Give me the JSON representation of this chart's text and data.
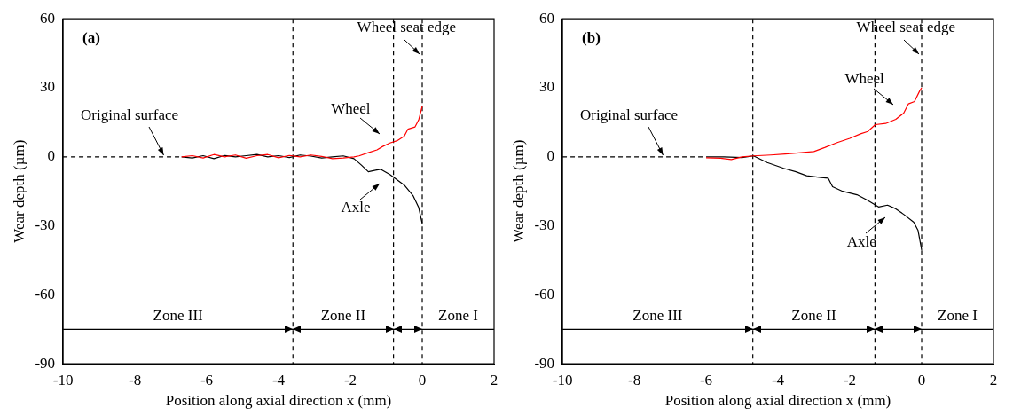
{
  "chart_data": [
    {
      "type": "line",
      "title": "(a)",
      "xlabel": "Position along axial direction x (mm)",
      "ylabel": "Wear depth (µm)",
      "xlim": [
        -10,
        2
      ],
      "ylim": [
        -90,
        60
      ],
      "xticks": [
        -10,
        -8,
        -6,
        -4,
        -2,
        0,
        2
      ],
      "yticks": [
        -90,
        -60,
        -30,
        0,
        30,
        60
      ],
      "grid": false,
      "series": [
        {
          "name": "Wheel",
          "color": "#ff0000",
          "x": [
            -6.7,
            -6.4,
            -6.1,
            -5.8,
            -5.5,
            -5.2,
            -4.9,
            -4.6,
            -4.3,
            -4.0,
            -3.7,
            -3.4,
            -3.1,
            -2.8,
            -2.5,
            -2.2,
            -1.9,
            -1.76,
            -1.5,
            -1.26,
            -1.1,
            -0.9,
            -0.7,
            -0.5,
            -0.4,
            -0.2,
            -0.1,
            0
          ],
          "values": [
            0,
            0.5,
            -0.5,
            1,
            0,
            0.8,
            -0.6,
            0.5,
            1,
            -0.4,
            0.6,
            0,
            0.8,
            0.2,
            -0.8,
            -0.5,
            0,
            0.4,
            1.8,
            3,
            4.5,
            6,
            7,
            9,
            12,
            13,
            16,
            22
          ]
        },
        {
          "name": "Axle",
          "color": "#000000",
          "x": [
            -6.7,
            -6.4,
            -6.1,
            -5.8,
            -5.5,
            -5.2,
            -4.9,
            -4.6,
            -4.3,
            -4.0,
            -3.7,
            -3.4,
            -3.1,
            -2.8,
            -2.5,
            -2.2,
            -1.9,
            -1.7,
            -1.5,
            -1.3,
            -1.16,
            -0.9,
            -0.7,
            -0.5,
            -0.25,
            -0.1,
            0
          ],
          "values": [
            0,
            -0.5,
            0.5,
            -0.8,
            0.6,
            0,
            0.5,
            1,
            0,
            0.5,
            -0.3,
            0.8,
            0.3,
            -0.5,
            0,
            0.4,
            -0.8,
            -3.5,
            -6.5,
            -5.8,
            -5.4,
            -7.7,
            -10,
            -12.3,
            -17,
            -22,
            -29
          ]
        }
      ],
      "ref_lines": [
        {
          "axis": "y",
          "value": 0,
          "label": "Original surface",
          "line_style": "dashed"
        },
        {
          "axis": "x",
          "value": 0,
          "label": "Wheel seat edge",
          "line_style": "dashed"
        },
        {
          "axis": "x",
          "value": -3.6,
          "line_style": "dashed"
        },
        {
          "axis": "x",
          "value": -0.8,
          "line_style": "dashed"
        },
        {
          "axis": "y",
          "value": -75,
          "line_style": "solid"
        }
      ],
      "annotations": [
        "Zone III",
        "Zone II",
        "Zone I"
      ]
    },
    {
      "type": "line",
      "title": "(b)",
      "xlabel": "Position along axial direction x (mm)",
      "ylabel": "Wear depth (µm)",
      "xlim": [
        -10,
        2
      ],
      "ylim": [
        -90,
        60
      ],
      "xticks": [
        -10,
        -8,
        -6,
        -4,
        -2,
        0,
        2
      ],
      "yticks": [
        -90,
        -60,
        -30,
        0,
        30,
        60
      ],
      "grid": false,
      "series": [
        {
          "name": "Wheel",
          "color": "#ff0000",
          "x": [
            -6,
            -5.6,
            -5.3,
            -5,
            -4.68,
            -4.2,
            -3.8,
            -3.5,
            -3.0,
            -2.7,
            -2.35,
            -2.0,
            -1.7,
            -1.5,
            -1.29,
            -1.0,
            -0.72,
            -0.5,
            -0.37,
            -0.2,
            -0.05,
            0
          ],
          "values": [
            -0.4,
            -0.6,
            -1.2,
            0,
            0.4,
            0.8,
            1.2,
            1.6,
            2.3,
            4,
            6.2,
            8,
            10,
            11,
            14,
            14.5,
            16.3,
            19,
            23,
            24,
            28.8,
            30
          ]
        },
        {
          "name": "Axle",
          "color": "#000000",
          "x": [
            -6,
            -5.5,
            -5,
            -4.68,
            -4.3,
            -3.84,
            -3.5,
            -3.2,
            -2.8,
            -2.6,
            -2.48,
            -2.2,
            -1.8,
            -1.53,
            -1.2,
            -0.95,
            -0.72,
            -0.5,
            -0.22,
            -0.1,
            0
          ],
          "values": [
            0,
            0,
            -0.3,
            0.4,
            -2.5,
            -5,
            -6.5,
            -8.2,
            -9,
            -9.3,
            -13,
            -15,
            -16.5,
            -18.7,
            -21.8,
            -21,
            -22.6,
            -25,
            -28.4,
            -32,
            -40.5
          ]
        }
      ],
      "ref_lines": [
        {
          "axis": "y",
          "value": 0,
          "label": "Original surface",
          "line_style": "dashed"
        },
        {
          "axis": "x",
          "value": 0,
          "label": "Wheel seat edge",
          "line_style": "dashed"
        },
        {
          "axis": "x",
          "value": -4.7,
          "line_style": "dashed"
        },
        {
          "axis": "x",
          "value": -1.3,
          "line_style": "dashed"
        },
        {
          "axis": "y",
          "value": -75,
          "line_style": "solid"
        }
      ],
      "annotations": [
        "Zone III",
        "Zone II",
        "Zone I"
      ]
    }
  ]
}
